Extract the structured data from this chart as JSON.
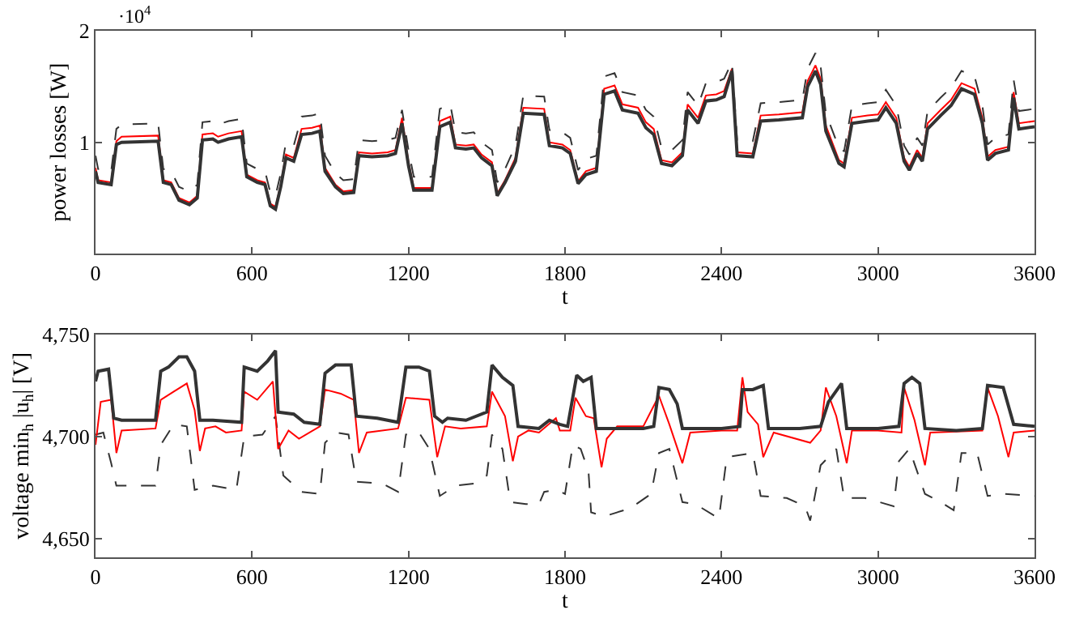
{
  "chart_data": [
    {
      "type": "line",
      "xlabel": "t",
      "ylabel": "power losses [W]",
      "annotations": [
        "·10$^{4}$"
      ],
      "x": [
        0,
        10,
        60,
        80,
        100,
        240,
        260,
        290,
        320,
        360,
        390,
        410,
        450,
        470,
        510,
        560,
        580,
        620,
        650,
        670,
        690,
        710,
        730,
        760,
        790,
        830,
        860,
        880,
        920,
        950,
        990,
        1010,
        1060,
        1120,
        1150,
        1175,
        1200,
        1220,
        1290,
        1320,
        1360,
        1380,
        1420,
        1450,
        1480,
        1520,
        1540,
        1570,
        1610,
        1640,
        1720,
        1740,
        1790,
        1820,
        1850,
        1880,
        1920,
        1950,
        1990,
        2020,
        2080,
        2110,
        2140,
        2170,
        2210,
        2250,
        2270,
        2310,
        2340,
        2380,
        2410,
        2440,
        2460,
        2520,
        2550,
        2620,
        2710,
        2730,
        2760,
        2780,
        2800,
        2850,
        2870,
        2900,
        2960,
        3000,
        3030,
        3070,
        3100,
        3120,
        3150,
        3170,
        3190,
        3240,
        3280,
        3320,
        3370,
        3400,
        3420,
        3450,
        3500,
        3520,
        3540,
        3600
      ],
      "xlim": [
        0,
        3600
      ],
      "xticks": [
        0,
        600,
        1200,
        1800,
        2400,
        3000,
        3600
      ],
      "ylim": [
        0,
        2
      ],
      "yticks": [
        1,
        2
      ],
      "marker": "none",
      "series": [
        {
          "color": "#ff0000",
          "line_style": "solid",
          "values": [
            0.77,
            0.66,
            0.64,
            1.01,
            1.05,
            1.06,
            0.66,
            0.64,
            0.5,
            0.46,
            0.52,
            1.07,
            1.08,
            1.05,
            1.08,
            1.1,
            0.71,
            0.66,
            0.64,
            0.45,
            0.42,
            0.62,
            0.89,
            0.86,
            1.12,
            1.13,
            1.15,
            0.77,
            0.62,
            0.56,
            0.57,
            0.91,
            0.9,
            0.91,
            0.93,
            1.22,
            0.82,
            0.59,
            0.59,
            1.19,
            1.23,
            0.98,
            0.97,
            0.98,
            0.89,
            0.82,
            0.54,
            0.66,
            0.86,
            1.31,
            1.3,
            1.0,
            0.98,
            0.93,
            0.65,
            0.74,
            0.77,
            1.48,
            1.51,
            1.34,
            1.31,
            1.18,
            1.12,
            0.84,
            0.82,
            0.91,
            1.34,
            1.22,
            1.42,
            1.43,
            1.46,
            1.66,
            0.91,
            0.9,
            1.24,
            1.25,
            1.27,
            1.55,
            1.69,
            1.57,
            1.15,
            0.84,
            0.81,
            1.22,
            1.24,
            1.25,
            1.36,
            1.22,
            0.86,
            0.78,
            0.93,
            0.86,
            1.17,
            1.29,
            1.38,
            1.53,
            1.48,
            1.22,
            0.87,
            0.93,
            0.96,
            1.45,
            1.17,
            1.19
          ]
        },
        {
          "color": "#333333",
          "line_style": "dashed",
          "values": [
            0.88,
            0.76,
            0.74,
            1.12,
            1.16,
            1.17,
            0.76,
            0.74,
            0.6,
            0.56,
            0.62,
            1.18,
            1.19,
            1.16,
            1.19,
            1.21,
            0.81,
            0.76,
            0.74,
            0.55,
            0.52,
            0.72,
            1.0,
            0.97,
            1.23,
            1.24,
            1.26,
            0.88,
            0.72,
            0.66,
            0.67,
            1.02,
            1.01,
            1.02,
            1.04,
            1.29,
            0.93,
            0.69,
            0.69,
            1.3,
            1.34,
            1.09,
            1.08,
            1.09,
            1.0,
            0.93,
            0.64,
            0.76,
            0.97,
            1.42,
            1.41,
            1.11,
            1.09,
            1.04,
            0.75,
            0.85,
            0.88,
            1.59,
            1.62,
            1.45,
            1.42,
            1.29,
            1.23,
            0.95,
            0.93,
            1.02,
            1.45,
            1.33,
            1.53,
            1.54,
            1.57,
            1.72,
            1.02,
            1.01,
            1.35,
            1.36,
            1.38,
            1.66,
            1.8,
            1.68,
            1.26,
            0.95,
            0.92,
            1.33,
            1.35,
            1.36,
            1.47,
            1.33,
            0.97,
            0.89,
            1.04,
            0.97,
            1.28,
            1.4,
            1.49,
            1.64,
            1.59,
            1.33,
            0.98,
            1.04,
            1.07,
            1.56,
            1.28,
            1.3
          ]
        },
        {
          "color": "#333333",
          "line_style": "solid",
          "values": [
            0.74,
            0.64,
            0.62,
            0.98,
            1.0,
            1.01,
            0.64,
            0.62,
            0.48,
            0.44,
            0.5,
            1.02,
            1.03,
            1.0,
            1.03,
            1.05,
            0.69,
            0.64,
            0.62,
            0.43,
            0.4,
            0.6,
            0.86,
            0.83,
            1.07,
            1.08,
            1.1,
            0.74,
            0.6,
            0.54,
            0.55,
            0.88,
            0.87,
            0.88,
            0.9,
            1.17,
            0.79,
            0.57,
            0.57,
            1.14,
            1.18,
            0.95,
            0.94,
            0.95,
            0.86,
            0.79,
            0.52,
            0.64,
            0.83,
            1.26,
            1.25,
            0.97,
            0.95,
            0.9,
            0.63,
            0.71,
            0.74,
            1.43,
            1.46,
            1.29,
            1.26,
            1.13,
            1.07,
            0.81,
            0.79,
            0.88,
            1.29,
            1.17,
            1.37,
            1.38,
            1.41,
            1.64,
            0.88,
            0.87,
            1.19,
            1.2,
            1.22,
            1.5,
            1.64,
            1.52,
            1.1,
            0.81,
            0.78,
            1.17,
            1.19,
            1.2,
            1.31,
            1.17,
            0.83,
            0.75,
            0.9,
            0.83,
            1.12,
            1.24,
            1.33,
            1.48,
            1.43,
            1.17,
            0.84,
            0.9,
            0.93,
            1.4,
            1.12,
            1.14
          ]
        }
      ]
    },
    {
      "type": "line",
      "xlabel": "t",
      "ylabel": "voltage min$_{h}$ |u$_{h}$| [V]",
      "xlim": [
        0,
        3600
      ],
      "xticks": [
        0,
        600,
        1200,
        1800,
        2400,
        3000,
        3600
      ],
      "ylim": [
        4641,
        4750
      ],
      "yticks": [
        {
          "value": 4650,
          "label": "4,650"
        },
        {
          "value": 4700,
          "label": "4,700"
        },
        {
          "value": 4750,
          "label": "4,750"
        }
      ],
      "marker": "none",
      "series": [
        {
          "color": "#333333",
          "line_style": "dashed",
          "x": [
            0,
            30,
            60,
            80,
            230,
            250,
            300,
            350,
            380,
            450,
            540,
            570,
            640,
            690,
            720,
            790,
            860,
            880,
            920,
            970,
            1000,
            1100,
            1160,
            1190,
            1240,
            1280,
            1320,
            1380,
            1450,
            1500,
            1520,
            1560,
            1590,
            1650,
            1700,
            1720,
            1770,
            1800,
            1830,
            1860,
            1890,
            1900,
            1950,
            2050,
            2130,
            2160,
            2200,
            2250,
            2300,
            2390,
            2420,
            2520,
            2550,
            2650,
            2720,
            2740,
            2780,
            2840,
            2870,
            2950,
            3060,
            3080,
            3120,
            3180,
            3240,
            3290,
            3320,
            3380,
            3420,
            3480,
            3600
          ],
          "values": [
            4701,
            4702,
            4687,
            4676,
            4676,
            4696,
            4706,
            4705,
            4674,
            4676,
            4674,
            4700,
            4701,
            4710,
            4681,
            4673,
            4672,
            4697,
            4702,
            4701,
            4678,
            4677,
            4673,
            4701,
            4702,
            4694,
            4671,
            4676,
            4677,
            4681,
            4701,
            4694,
            4668,
            4667,
            4667,
            4673,
            4674,
            4672,
            4696,
            4694,
            4683,
            4663,
            4661,
            4665,
            4672,
            4692,
            4694,
            4668,
            4667,
            4660,
            4690,
            4692,
            4671,
            4670,
            4666,
            4659,
            4686,
            4694,
            4670,
            4670,
            4666,
            4688,
            4694,
            4672,
            4668,
            4664,
            4692,
            4692,
            4671,
            4672,
            4671
          ]
        },
        {
          "color": "#ff0000",
          "line_style": "solid",
          "x": [
            0,
            20,
            60,
            80,
            100,
            230,
            250,
            300,
            350,
            380,
            400,
            420,
            460,
            500,
            560,
            570,
            620,
            680,
            700,
            740,
            780,
            860,
            880,
            940,
            990,
            1010,
            1040,
            1160,
            1190,
            1280,
            1310,
            1340,
            1400,
            1500,
            1520,
            1570,
            1600,
            1620,
            1660,
            1700,
            1765,
            1780,
            1820,
            1840,
            1880,
            1910,
            1940,
            1960,
            2000,
            2100,
            2160,
            2200,
            2250,
            2280,
            2400,
            2460,
            2480,
            2500,
            2540,
            2560,
            2600,
            2740,
            2780,
            2800,
            2840,
            2880,
            2900,
            3000,
            3090,
            3100,
            3140,
            3180,
            3200,
            3400,
            3420,
            3460,
            3500,
            3520,
            3600
          ],
          "values": [
            4696,
            4717,
            4718,
            4692,
            4703,
            4704,
            4718,
            4722,
            4726,
            4713,
            4693,
            4704,
            4705,
            4702,
            4703,
            4722,
            4718,
            4727,
            4694,
            4703,
            4699,
            4705,
            4723,
            4721,
            4718,
            4692,
            4702,
            4704,
            4719,
            4718,
            4690,
            4705,
            4704,
            4705,
            4722,
            4710,
            4688,
            4700,
            4703,
            4702,
            4709,
            4703,
            4703,
            4719,
            4710,
            4709,
            4685,
            4699,
            4705,
            4705,
            4720,
            4706,
            4687,
            4702,
            4703,
            4703,
            4729,
            4712,
            4706,
            4690,
            4702,
            4697,
            4703,
            4724,
            4710,
            4687,
            4703,
            4703,
            4702,
            4724,
            4708,
            4686,
            4702,
            4703,
            4724,
            4710,
            4690,
            4702,
            4703
          ]
        },
        {
          "color": "#333333",
          "line_style": "solid",
          "x": [
            0,
            10,
            50,
            70,
            100,
            230,
            250,
            280,
            320,
            350,
            380,
            400,
            450,
            560,
            570,
            620,
            660,
            690,
            700,
            760,
            800,
            860,
            880,
            920,
            980,
            1000,
            1080,
            1160,
            1190,
            1240,
            1280,
            1300,
            1330,
            1350,
            1420,
            1500,
            1520,
            1560,
            1600,
            1620,
            1700,
            1740,
            1780,
            1810,
            1845,
            1870,
            1900,
            1920,
            2000,
            2100,
            2140,
            2160,
            2200,
            2230,
            2250,
            2400,
            2470,
            2480,
            2520,
            2560,
            2580,
            2700,
            2780,
            2810,
            2860,
            2880,
            3000,
            3080,
            3100,
            3130,
            3160,
            3180,
            3300,
            3400,
            3420,
            3480,
            3520,
            3600
          ],
          "values": [
            4727,
            4732,
            4733,
            4709,
            4708,
            4708,
            4732,
            4734,
            4739,
            4739,
            4732,
            4708,
            4708,
            4707,
            4734,
            4732,
            4737,
            4742,
            4712,
            4711,
            4707,
            4706,
            4731,
            4735,
            4735,
            4710,
            4709,
            4707,
            4734,
            4734,
            4732,
            4710,
            4707,
            4709,
            4708,
            4712,
            4735,
            4729,
            4725,
            4705,
            4704,
            4708,
            4706,
            4705,
            4730,
            4727,
            4729,
            4704,
            4704,
            4704,
            4705,
            4724,
            4723,
            4716,
            4704,
            4704,
            4705,
            4723,
            4723,
            4725,
            4704,
            4704,
            4705,
            4717,
            4726,
            4704,
            4704,
            4705,
            4726,
            4729,
            4726,
            4704,
            4703,
            4704,
            4725,
            4724,
            4706,
            4705
          ]
        }
      ]
    }
  ]
}
